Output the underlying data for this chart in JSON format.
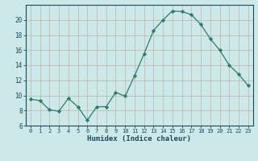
{
  "x": [
    0,
    1,
    2,
    3,
    4,
    5,
    6,
    7,
    8,
    9,
    10,
    11,
    12,
    13,
    14,
    15,
    16,
    17,
    18,
    19,
    20,
    21,
    22,
    23
  ],
  "y": [
    9.5,
    9.3,
    8.1,
    7.9,
    9.6,
    8.5,
    6.7,
    8.5,
    8.5,
    10.4,
    9.9,
    12.6,
    15.5,
    18.6,
    20.0,
    21.2,
    21.1,
    20.7,
    19.4,
    17.5,
    16.0,
    14.0,
    12.8,
    11.3
  ],
  "line_color": "#2a7d6e",
  "marker": "D",
  "marker_size": 2.2,
  "bg_color": "#cce8e8",
  "grid_color": "#c0b0a8",
  "xlabel": "Humidex (Indice chaleur)",
  "ylim": [
    6,
    22
  ],
  "xlim": [
    -0.5,
    23.5
  ],
  "yticks": [
    6,
    8,
    10,
    12,
    14,
    16,
    18,
    20
  ],
  "xticks": [
    0,
    1,
    2,
    3,
    4,
    5,
    6,
    7,
    8,
    9,
    10,
    11,
    12,
    13,
    14,
    15,
    16,
    17,
    18,
    19,
    20,
    21,
    22,
    23
  ],
  "tick_color": "#1a4a5a",
  "label_color": "#1a4a5a"
}
